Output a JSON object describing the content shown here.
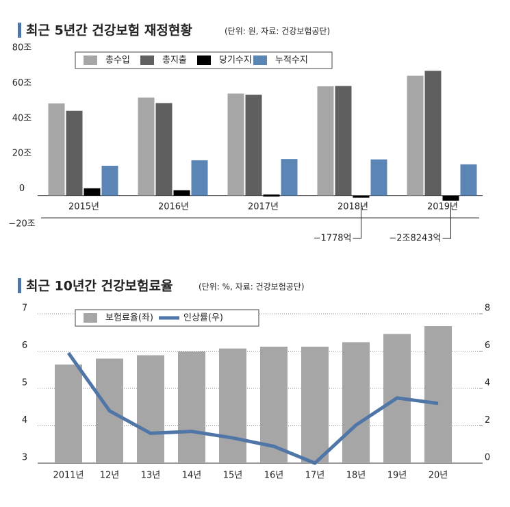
{
  "chart_data": [
    {
      "type": "bar",
      "title": "최근 5년간 건강보험 재정현황",
      "subtitle": "(단위: 원, 자료: 건강보험공단)",
      "categories": [
        "2015년",
        "2016년",
        "2017년",
        "2018년",
        "2019년"
      ],
      "series": [
        {
          "name": "총수입",
          "color": "#a6a6a6",
          "values": [
            52.4,
            55.7,
            58.0,
            62.1,
            68.1
          ]
        },
        {
          "name": "총지출",
          "color": "#5f5f5f",
          "values": [
            48.2,
            52.6,
            57.3,
            62.3,
            70.9
          ]
        },
        {
          "name": "당기수지",
          "color": "#000000",
          "values": [
            4.2,
            3.1,
            0.7,
            -0.1778,
            -2.8243
          ],
          "value_labels": [
            null,
            null,
            null,
            "−1778억",
            "−2조8243억"
          ]
        },
        {
          "name": "누적수지",
          "color": "#5b85b5",
          "values": [
            17.0,
            20.1,
            20.8,
            20.6,
            17.8
          ]
        }
      ],
      "ylim": [
        -20,
        80
      ],
      "yticks": [
        {
          "value": -20,
          "label": "−20조"
        },
        0,
        {
          "value": 20,
          "label": "20조"
        },
        {
          "value": 40,
          "label": "40조"
        },
        {
          "value": 60,
          "label": "60조"
        },
        {
          "value": 80,
          "label": "80조"
        }
      ],
      "legend": "top"
    },
    {
      "type": "bar",
      "title": "최근 10년간 건강보험료율",
      "subtitle": "(단위: %, 자료: 건강보험공단)",
      "categories": [
        "2011년",
        "12년",
        "13년",
        "14년",
        "15년",
        "16년",
        "17년",
        "18년",
        "19년",
        "20년"
      ],
      "series": [
        {
          "name": "보험료율(좌)",
          "type": "bar",
          "color": "#a6a6a6",
          "values": [
            5.64,
            5.8,
            5.89,
            5.99,
            6.07,
            6.12,
            6.12,
            6.24,
            6.46,
            6.67
          ]
        },
        {
          "name": "인상률(우)",
          "type": "line",
          "axis": "y2",
          "color": "#4f76a6",
          "values": [
            5.9,
            2.8,
            1.6,
            1.7,
            1.35,
            0.9,
            0,
            2.04,
            3.49,
            3.2
          ]
        }
      ],
      "ylim": [
        3,
        7
      ],
      "yticks": [
        3,
        4,
        5,
        6,
        7
      ],
      "y2lim": [
        0,
        8
      ],
      "y2ticks": [
        0,
        2,
        4,
        6,
        8
      ],
      "grid": true,
      "legend": "top"
    }
  ]
}
